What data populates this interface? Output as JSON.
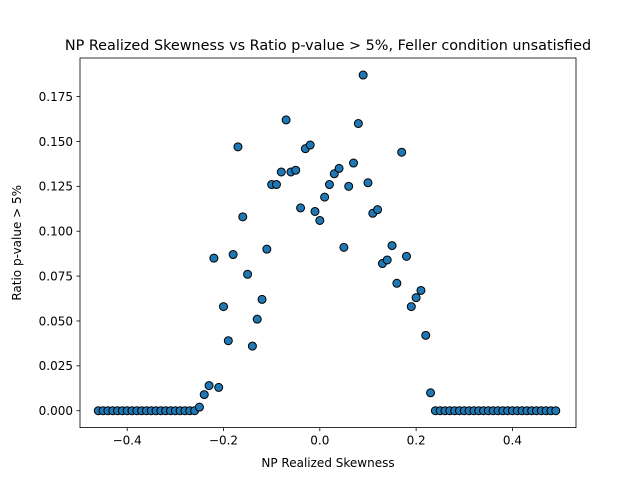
{
  "chart_data": {
    "type": "scatter",
    "title": "NP Realized Skewness vs Ratio p-value > 5%, Feller condition unsatisfied",
    "xlabel": "NP Realized Skewness",
    "ylabel": "Ratio p-value > 5%",
    "xlim": [
      -0.498,
      0.532
    ],
    "ylim": [
      -0.0094,
      0.1965
    ],
    "xticks": [
      -0.4,
      -0.2,
      0.0,
      0.2,
      0.4
    ],
    "xtick_labels": [
      "−0.4",
      "−0.2",
      "0.0",
      "0.2",
      "0.4"
    ],
    "yticks": [
      0.0,
      0.025,
      0.05,
      0.075,
      0.1,
      0.125,
      0.15,
      0.175
    ],
    "ytick_labels": [
      "0.000",
      "0.025",
      "0.050",
      "0.075",
      "0.100",
      "0.125",
      "0.150",
      "0.175"
    ],
    "grid": false,
    "legend": "none",
    "marker_color": "#1f77b4",
    "marker_edge_color": "#000000",
    "x": [
      -0.46,
      -0.45,
      -0.44,
      -0.43,
      -0.42,
      -0.41,
      -0.4,
      -0.39,
      -0.38,
      -0.37,
      -0.36,
      -0.35,
      -0.34,
      -0.33,
      -0.32,
      -0.31,
      -0.3,
      -0.29,
      -0.28,
      -0.27,
      -0.26,
      -0.25,
      -0.24,
      -0.23,
      -0.22,
      -0.21,
      -0.2,
      -0.19,
      -0.18,
      -0.17,
      -0.16,
      -0.15,
      -0.14,
      -0.13,
      -0.12,
      -0.11,
      -0.1,
      -0.09,
      -0.08,
      -0.07,
      -0.06,
      -0.05,
      -0.04,
      -0.03,
      -0.02,
      -0.01,
      0.0,
      0.01,
      0.02,
      0.03,
      0.04,
      0.05,
      0.06,
      0.07,
      0.08,
      0.09,
      0.1,
      0.11,
      0.12,
      0.13,
      0.14,
      0.15,
      0.16,
      0.17,
      0.18,
      0.19,
      0.2,
      0.21,
      0.22,
      0.23,
      0.24,
      0.25,
      0.26,
      0.27,
      0.28,
      0.29,
      0.3,
      0.31,
      0.32,
      0.33,
      0.34,
      0.35,
      0.36,
      0.37,
      0.38,
      0.39,
      0.4,
      0.41,
      0.42,
      0.43,
      0.44,
      0.45,
      0.46,
      0.47,
      0.48,
      0.49
    ],
    "y": [
      0,
      0,
      0,
      0,
      0,
      0,
      0,
      0,
      0,
      0,
      0,
      0,
      0,
      0,
      0,
      0,
      0,
      0,
      0,
      0,
      0,
      0.002,
      0.009,
      0.014,
      0.085,
      0.013,
      0.058,
      0.039,
      0.087,
      0.147,
      0.108,
      0.076,
      0.036,
      0.051,
      0.062,
      0.09,
      0.126,
      0.126,
      0.133,
      0.162,
      0.133,
      0.134,
      0.113,
      0.146,
      0.148,
      0.111,
      0.106,
      0.119,
      0.126,
      0.132,
      0.135,
      0.091,
      0.125,
      0.138,
      0.16,
      0.187,
      0.127,
      0.11,
      0.112,
      0.082,
      0.084,
      0.092,
      0.071,
      0.144,
      0.086,
      0.058,
      0.063,
      0.067,
      0.042,
      0.01,
      0,
      0,
      0,
      0,
      0,
      0,
      0,
      0,
      0,
      0,
      0,
      0,
      0,
      0,
      0,
      0,
      0,
      0,
      0,
      0,
      0,
      0,
      0,
      0,
      0,
      0
    ]
  }
}
